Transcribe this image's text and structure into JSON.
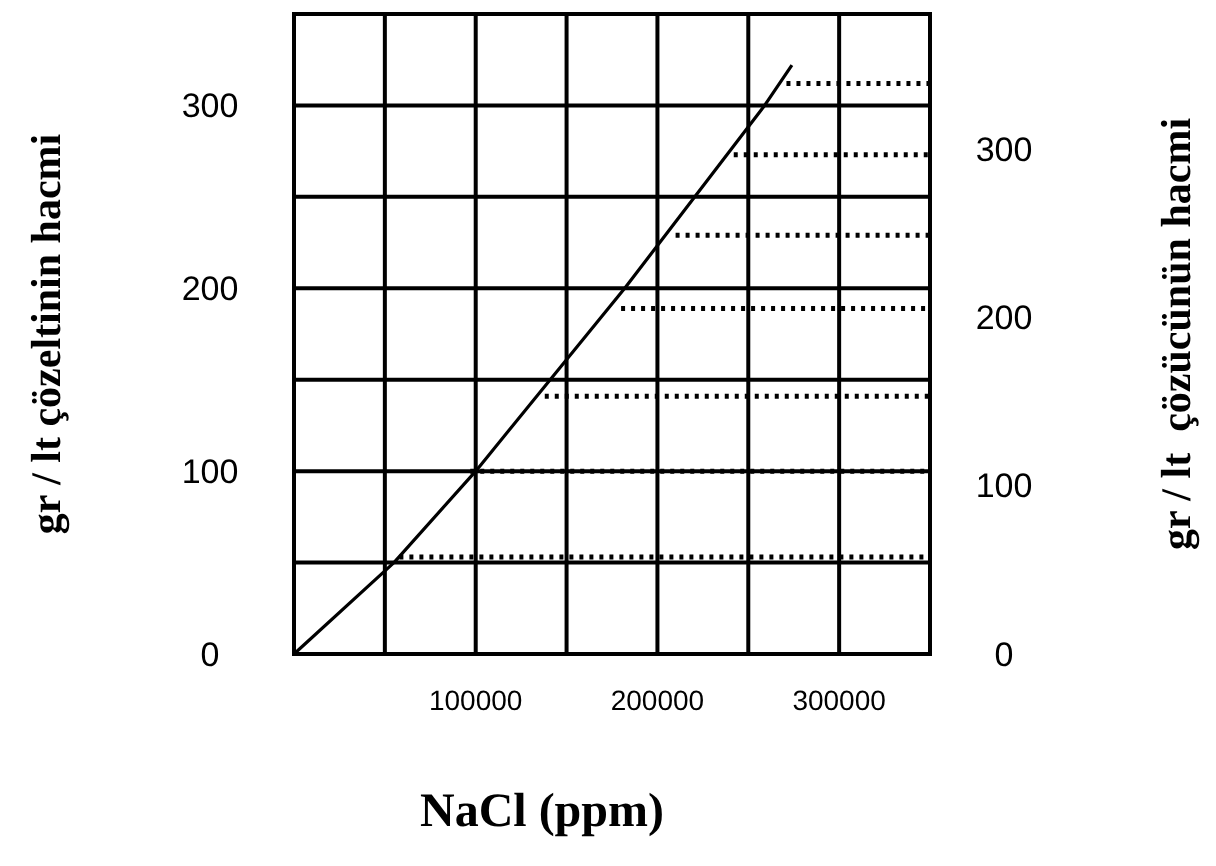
{
  "chart_data": {
    "type": "line",
    "xlabel": "NaCl (ppm)",
    "ylabel": "gr / lt çözeltinin hacmi",
    "y2label": "gr / lt  çözücünün hacmi",
    "xlim": [
      0,
      350000
    ],
    "ylim": [
      0,
      350
    ],
    "y2lim": [
      0,
      380
    ],
    "xticks": [
      {
        "value": 0,
        "label": null
      },
      {
        "value": 50000,
        "label": null
      },
      100000,
      {
        "value": 150000,
        "label": null
      },
      200000,
      {
        "value": 250000,
        "label": null
      },
      300000,
      {
        "value": 350000,
        "label": null
      }
    ],
    "yticks": [
      0,
      {
        "value": 50,
        "label": null
      },
      100,
      {
        "value": 150,
        "label": null
      },
      200,
      {
        "value": 250,
        "label": null
      },
      300,
      {
        "value": 350,
        "label": null
      }
    ],
    "y2ticks": [
      0,
      100,
      200,
      300
    ],
    "grid": true,
    "marker": "none",
    "series": [
      {
        "color": "#000000",
        "line_style": "solid",
        "x": [
          0,
          55000,
          100000,
          182000,
          259000,
          274000
        ],
        "values": [
          0,
          50,
          100,
          200,
          300,
          322
        ]
      },
      {
        "color": "#000000",
        "line_style": "dotted",
        "x": [
          58000,
          350000
        ],
        "values": [
          53,
          53
        ]
      },
      {
        "color": "#000000",
        "line_style": "dotted",
        "x": [
          97000,
          350000
        ],
        "values": [
          100,
          100
        ]
      },
      {
        "color": "#000000",
        "line_style": "dotted",
        "x": [
          138000,
          350000
        ],
        "values": [
          141,
          141
        ]
      },
      {
        "color": "#000000",
        "line_style": "dotted",
        "x": [
          180000,
          350000
        ],
        "values": [
          189,
          189
        ]
      },
      {
        "color": "#000000",
        "line_style": "dotted",
        "x": [
          210000,
          350000
        ],
        "values": [
          229,
          229
        ]
      },
      {
        "color": "#000000",
        "line_style": "dotted",
        "x": [
          242000,
          350000
        ],
        "values": [
          273,
          273
        ]
      },
      {
        "color": "#000000",
        "line_style": "dotted",
        "x": [
          271000,
          350000
        ],
        "values": [
          312,
          312
        ]
      }
    ]
  }
}
